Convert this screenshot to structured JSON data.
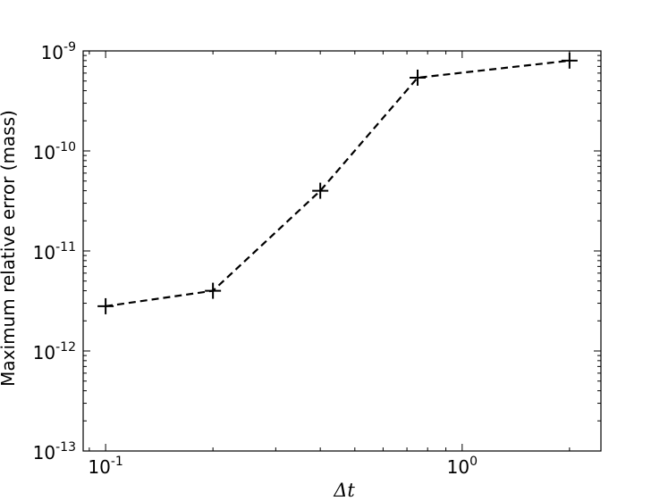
{
  "chart_data": {
    "type": "line",
    "xlabel": "Δt",
    "ylabel": "Maximum relative error (mass)",
    "xscale": "log",
    "yscale": "log",
    "xlim": [
      0.0865,
      2.45
    ],
    "ylim": [
      1e-13,
      1e-09
    ],
    "x_major_ticks": [
      {
        "value": 0.1,
        "base": "10",
        "exp": "-1"
      },
      {
        "value": 1.0,
        "base": "10",
        "exp": "0"
      }
    ],
    "y_major_ticks": [
      {
        "value": 1e-13,
        "base": "10",
        "exp": "-13"
      },
      {
        "value": 1e-12,
        "base": "10",
        "exp": "-12"
      },
      {
        "value": 1e-11,
        "base": "10",
        "exp": "-11"
      },
      {
        "value": 1e-10,
        "base": "10",
        "exp": "-10"
      },
      {
        "value": 1e-09,
        "base": "10",
        "exp": "-9"
      }
    ],
    "series": [
      {
        "x": [
          0.1,
          0.2,
          0.4,
          0.75,
          2.0
        ],
        "y": [
          2.8e-12,
          4e-12,
          4e-11,
          5.4e-10,
          8e-10
        ],
        "line_style": "dashed",
        "marker": "plus",
        "color": "#000000"
      }
    ],
    "grid": false,
    "legend": "none"
  }
}
